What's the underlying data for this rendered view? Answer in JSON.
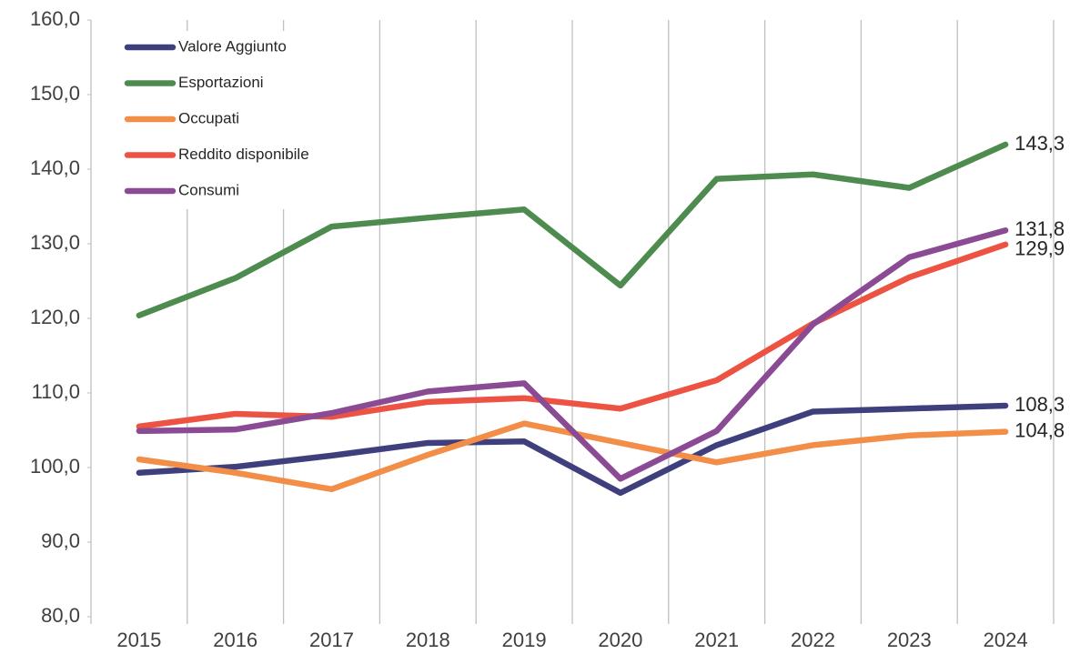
{
  "chart_data": {
    "type": "line",
    "categories": [
      "2015",
      "2016",
      "2017",
      "2018",
      "2019",
      "2020",
      "2021",
      "2022",
      "2023",
      "2024"
    ],
    "series": [
      {
        "name": "Valore Aggiunto",
        "color": "#403f7e",
        "values": [
          99.3,
          100.1,
          101.6,
          103.3,
          103.5,
          96.6,
          103.0,
          107.5,
          107.9,
          108.3
        ],
        "value_labels": [
          null,
          null,
          null,
          null,
          null,
          null,
          null,
          null,
          null,
          "108,3"
        ]
      },
      {
        "name": "Esportazioni",
        "color": "#4e8b4e",
        "values": [
          120.4,
          125.4,
          132.3,
          133.5,
          134.6,
          124.4,
          138.7,
          139.3,
          137.5,
          143.3
        ],
        "value_labels": [
          null,
          null,
          null,
          null,
          null,
          null,
          null,
          null,
          null,
          "143,3"
        ]
      },
      {
        "name": "Occupati",
        "color": "#f28e48",
        "values": [
          101.1,
          99.3,
          97.1,
          101.7,
          105.9,
          103.3,
          100.7,
          103.0,
          104.3,
          104.8
        ],
        "value_labels": [
          null,
          null,
          null,
          null,
          null,
          null,
          null,
          null,
          null,
          "104,8"
        ]
      },
      {
        "name": "Reddito disponibile",
        "color": "#ec5343",
        "values": [
          105.5,
          107.2,
          106.8,
          108.8,
          109.3,
          107.9,
          111.7,
          119.3,
          125.5,
          129.9
        ],
        "value_labels": [
          null,
          null,
          null,
          null,
          null,
          null,
          null,
          null,
          null,
          "129,9"
        ]
      },
      {
        "name": "Consumi",
        "color": "#8b4a94",
        "values": [
          104.9,
          105.1,
          107.3,
          110.2,
          111.3,
          98.5,
          104.9,
          119.2,
          128.2,
          131.8
        ],
        "value_labels": [
          null,
          null,
          null,
          null,
          null,
          null,
          null,
          null,
          null,
          "131,8"
        ]
      }
    ],
    "ylim": [
      80,
      160
    ],
    "yticks": [
      {
        "value": 80,
        "label": "80,0"
      },
      {
        "value": 90,
        "label": "90,0"
      },
      {
        "value": 100,
        "label": "100,0"
      },
      {
        "value": 110,
        "label": "110,0"
      },
      {
        "value": 120,
        "label": "120,0"
      },
      {
        "value": 130,
        "label": "130,0"
      },
      {
        "value": 140,
        "label": "140,0"
      },
      {
        "value": 150,
        "label": "150,0"
      },
      {
        "value": 160,
        "label": "160,0"
      }
    ],
    "legend": "top-left"
  }
}
